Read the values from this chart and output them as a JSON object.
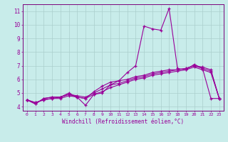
{
  "title": "",
  "xlabel": "Windchill (Refroidissement éolien,°C)",
  "ylabel": "",
  "bg_color": "#c8ecea",
  "grid_color": "#aacfcc",
  "line_color": "#990099",
  "spine_color": "#7a007a",
  "x_ticks": [
    0,
    1,
    2,
    3,
    4,
    5,
    6,
    7,
    8,
    9,
    10,
    11,
    12,
    13,
    14,
    15,
    16,
    17,
    18,
    19,
    20,
    21,
    22,
    23
  ],
  "y_ticks": [
    4,
    5,
    6,
    7,
    8,
    9,
    10,
    11
  ],
  "xlim": [
    -0.5,
    23.5
  ],
  "ylim": [
    3.7,
    11.5
  ],
  "series": [
    [
      4.5,
      4.2,
      4.6,
      4.7,
      4.7,
      5.0,
      4.7,
      4.1,
      4.9,
      5.0,
      5.6,
      5.9,
      6.5,
      7.0,
      9.9,
      9.7,
      9.6,
      11.2,
      6.8,
      6.7,
      7.1,
      6.8,
      4.6,
      4.6
    ],
    [
      4.5,
      4.2,
      4.6,
      4.7,
      4.7,
      4.9,
      4.7,
      4.6,
      5.1,
      5.5,
      5.8,
      5.9,
      6.0,
      6.2,
      6.3,
      6.5,
      6.6,
      6.7,
      6.7,
      6.8,
      7.0,
      6.9,
      6.7,
      4.6
    ],
    [
      4.5,
      4.3,
      4.5,
      4.6,
      4.7,
      4.9,
      4.8,
      4.7,
      5.0,
      5.3,
      5.6,
      5.7,
      5.9,
      6.1,
      6.2,
      6.4,
      6.5,
      6.6,
      6.7,
      6.8,
      7.0,
      6.8,
      6.6,
      4.6
    ],
    [
      4.5,
      4.3,
      4.5,
      4.6,
      4.6,
      4.8,
      4.7,
      4.6,
      4.9,
      5.1,
      5.4,
      5.6,
      5.8,
      6.0,
      6.1,
      6.3,
      6.4,
      6.5,
      6.6,
      6.7,
      6.9,
      6.7,
      6.5,
      4.6
    ]
  ]
}
